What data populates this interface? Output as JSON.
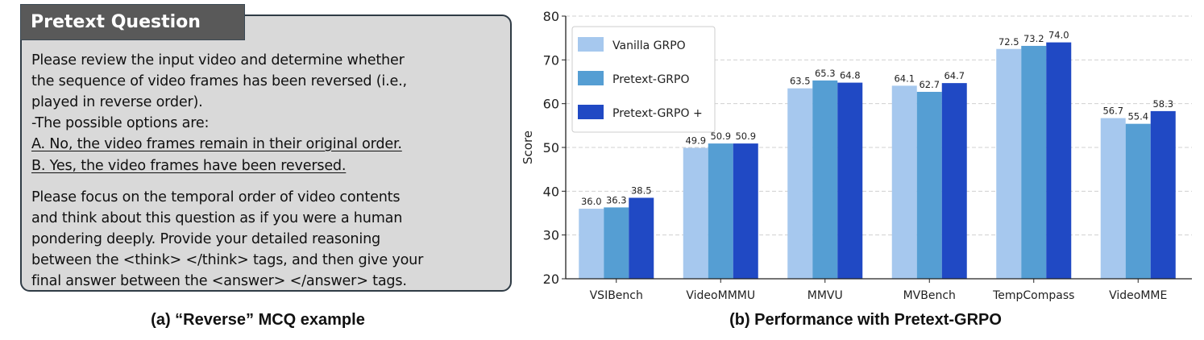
{
  "panel_a": {
    "header": "Pretext Question",
    "lines": [
      "Please review the input video and determine whether",
      "the sequence of video frames has been reversed (i.e.,",
      "played in reverse order).",
      "-The possible options are:"
    ],
    "options": [
      "A. No, the video frames remain in their original order.",
      "B. Yes, the video frames have been reversed."
    ],
    "instructions": [
      "Please focus on the temporal order of video contents",
      "and think about this question as if you were a human",
      "pondering deeply. Provide your detailed reasoning",
      "between the <think> </think> tags, and then give your",
      "final answer between the <answer> </answer> tags."
    ],
    "caption": "(a) “Reverse” MCQ example"
  },
  "chart_data": {
    "type": "bar",
    "caption": "(b) Performance with Pretext-GRPO",
    "ylabel": "Score",
    "ylim": [
      20,
      80
    ],
    "yticks": [
      20,
      30,
      40,
      50,
      60,
      70,
      80
    ],
    "grid": "horizontal dashed",
    "legend_position": "top-left",
    "categories": [
      "VSIBench",
      "VideoMMMU",
      "MMVU",
      "MVBench",
      "TempCompass",
      "VideoMME"
    ],
    "series": [
      {
        "name": "Vanilla GRPO",
        "color": "#a6c8ee",
        "values": [
          36.0,
          49.9,
          63.5,
          64.1,
          72.5,
          56.7
        ]
      },
      {
        "name": "Pretext-GRPO",
        "color": "#559ed3",
        "values": [
          36.3,
          50.9,
          65.3,
          62.7,
          73.2,
          55.4
        ]
      },
      {
        "name": "Pretext-GRPO +",
        "color": "#2049c4",
        "values": [
          38.5,
          50.9,
          64.8,
          64.7,
          74.0,
          58.3
        ]
      }
    ]
  }
}
